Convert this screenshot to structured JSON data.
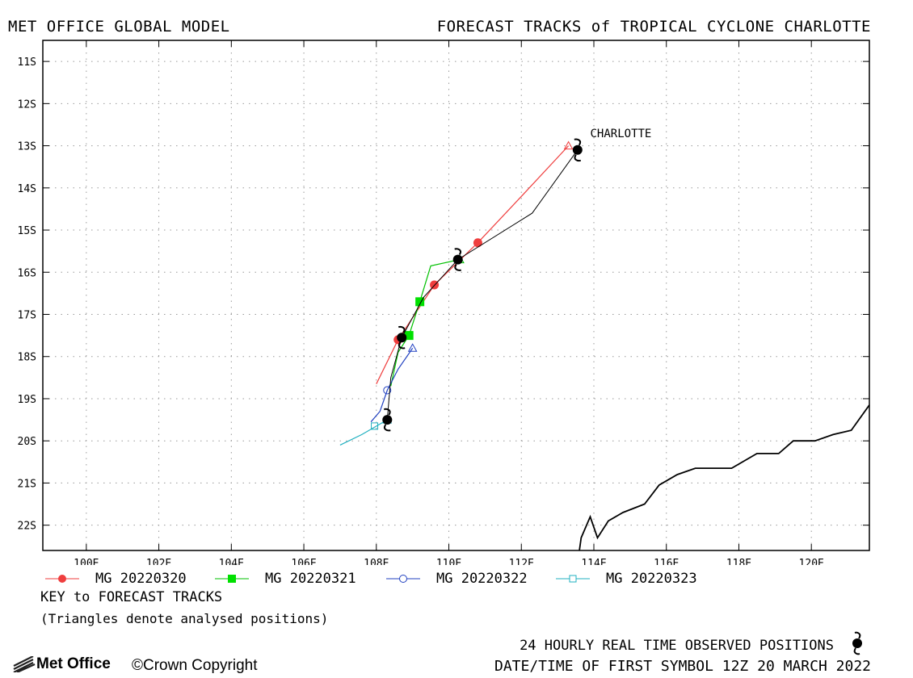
{
  "header": {
    "left": "MET OFFICE GLOBAL MODEL",
    "right": "FORECAST TRACKS of TROPICAL CYCLONE CHARLOTTE"
  },
  "map": {
    "lon_range": [
      98.8,
      121.6
    ],
    "lat_range": [
      -22.6,
      -10.5
    ],
    "lat_ticks": [
      {
        "value": -11,
        "label": "11S"
      },
      {
        "value": -12,
        "label": "12S"
      },
      {
        "value": -13,
        "label": "13S"
      },
      {
        "value": -14,
        "label": "14S"
      },
      {
        "value": -15,
        "label": "15S"
      },
      {
        "value": -16,
        "label": "16S"
      },
      {
        "value": -17,
        "label": "17S"
      },
      {
        "value": -18,
        "label": "18S"
      },
      {
        "value": -19,
        "label": "19S"
      },
      {
        "value": -20,
        "label": "20S"
      },
      {
        "value": -21,
        "label": "21S"
      },
      {
        "value": -22,
        "label": "22S"
      }
    ],
    "lon_ticks": [
      {
        "value": 100,
        "label": "100E"
      },
      {
        "value": 102,
        "label": "102E"
      },
      {
        "value": 104,
        "label": "104E"
      },
      {
        "value": 106,
        "label": "106E"
      },
      {
        "value": 108,
        "label": "108E"
      },
      {
        "value": 110,
        "label": "110E"
      },
      {
        "value": 112,
        "label": "112E"
      },
      {
        "value": 114,
        "label": "114E"
      },
      {
        "value": 116,
        "label": "116E"
      },
      {
        "value": 118,
        "label": "118E"
      },
      {
        "value": 120,
        "label": "120E"
      }
    ],
    "grid": true,
    "storm_label": "CHARLOTTE",
    "storm_label_pos": [
      113.9,
      -12.8
    ],
    "coastline": [
      [
        113.6,
        -22.6
      ],
      [
        113.65,
        -22.3
      ],
      [
        113.9,
        -21.8
      ],
      [
        114.1,
        -22.3
      ],
      [
        114.4,
        -21.9
      ],
      [
        114.8,
        -21.7
      ],
      [
        115.4,
        -21.5
      ],
      [
        115.8,
        -21.05
      ],
      [
        116.3,
        -20.8
      ],
      [
        116.8,
        -20.65
      ],
      [
        117.8,
        -20.65
      ],
      [
        118.5,
        -20.3
      ],
      [
        119.1,
        -20.3
      ],
      [
        119.5,
        -20.0
      ],
      [
        120.1,
        -20.0
      ],
      [
        120.6,
        -19.85
      ],
      [
        121.1,
        -19.75
      ],
      [
        121.6,
        -19.15
      ]
    ],
    "observed_track": [
      [
        113.55,
        -13.1
      ],
      [
        112.3,
        -14.6
      ],
      [
        110.25,
        -15.7
      ],
      [
        109.3,
        -16.6
      ],
      [
        108.7,
        -17.55
      ],
      [
        108.4,
        -18.5
      ],
      [
        108.3,
        -19.5
      ]
    ],
    "observed_symbols": [
      [
        113.55,
        -13.1
      ],
      [
        110.25,
        -15.7
      ],
      [
        108.7,
        -17.55
      ],
      [
        108.3,
        -19.5
      ]
    ],
    "observed_colour": "#000000",
    "tracks": [
      {
        "name": "MG 20220320",
        "colour": "#ef3e3e",
        "marker": "filled-circle",
        "analysed": [
          113.3,
          -13.0
        ],
        "points": [
          [
            113.3,
            -13.0
          ],
          [
            112.0,
            -14.2
          ],
          [
            110.8,
            -15.3
          ],
          [
            109.6,
            -16.3
          ],
          [
            108.6,
            -17.6
          ],
          [
            108.0,
            -18.65
          ]
        ],
        "marker_points": [
          [
            110.8,
            -15.3
          ],
          [
            109.6,
            -16.3
          ],
          [
            108.6,
            -17.6
          ]
        ]
      },
      {
        "name": "MG 20220321",
        "colour": "#00c000",
        "marker": "filled-square",
        "analysed": [
          110.3,
          -15.7
        ],
        "points": [
          [
            110.3,
            -15.7
          ],
          [
            109.5,
            -15.85
          ],
          [
            109.2,
            -16.7
          ],
          [
            108.9,
            -17.5
          ],
          [
            108.6,
            -17.9
          ],
          [
            108.4,
            -18.7
          ]
        ],
        "marker_points": [
          [
            109.2,
            -16.7
          ],
          [
            108.9,
            -17.5
          ]
        ]
      },
      {
        "name": "MG 20220322",
        "colour": "#2040c0",
        "marker": "open-circle",
        "analysed": [
          109.0,
          -17.8
        ],
        "points": [
          [
            109.0,
            -17.8
          ],
          [
            108.6,
            -18.3
          ],
          [
            108.3,
            -18.8
          ],
          [
            108.1,
            -19.3
          ],
          [
            107.85,
            -19.55
          ]
        ],
        "marker_points": [
          [
            108.3,
            -18.8
          ]
        ]
      },
      {
        "name": "MG 20220323",
        "colour": "#20b0c0",
        "marker": "open-square",
        "analysed": [
          108.3,
          -19.5
        ],
        "points": [
          [
            108.3,
            -19.5
          ],
          [
            107.6,
            -19.85
          ],
          [
            107.0,
            -20.1
          ]
        ],
        "marker_points": [
          [
            107.95,
            -19.65
          ]
        ]
      }
    ]
  },
  "legend": {
    "items": [
      {
        "label": "MG 20220320",
        "colour": "#ef3e3e",
        "marker": "filled-circle"
      },
      {
        "label": "MG 20220321",
        "colour": "#00c000",
        "marker": "filled-square"
      },
      {
        "label": "MG 20220322",
        "colour": "#2040c0",
        "marker": "open-circle"
      },
      {
        "label": "MG 20220323",
        "colour": "#20b0c0",
        "marker": "open-square"
      }
    ]
  },
  "key": {
    "title": "KEY to FORECAST TRACKS",
    "note": "(Triangles denote analysed positions)"
  },
  "footer": {
    "observed": "24 HOURLY REAL TIME OBSERVED POSITIONS",
    "date": "DATE/TIME OF FIRST SYMBOL 12Z 20 MARCH 2022",
    "logo": "Met Office",
    "copyright": "Crown Copyright"
  }
}
